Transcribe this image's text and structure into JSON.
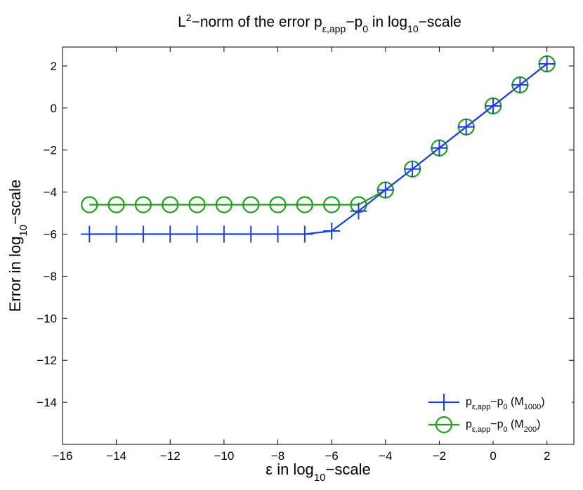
{
  "chart_data": {
    "type": "line",
    "title": {
      "main": "L",
      "sup": "2",
      "mid": "−norm of the error p",
      "sub1": "ε,app",
      "mid2": "−p",
      "sub2": "0",
      "mid3": " in log",
      "sub3": "10",
      "end": "−scale"
    },
    "xlabel": {
      "pre": "ε in log",
      "sub": "10",
      "post": "−scale"
    },
    "ylabel": {
      "pre": "Error in log",
      "sub": "10",
      "post": "−scale"
    },
    "xlim": [
      -16,
      3
    ],
    "ylim": [
      -16,
      2.9
    ],
    "xticks": [
      -16,
      -14,
      -12,
      -10,
      -8,
      -6,
      -4,
      -2,
      0,
      2
    ],
    "yticks": [
      -14,
      -12,
      -10,
      -8,
      -6,
      -4,
      -2,
      0,
      2
    ],
    "xtick_labels": [
      "−16",
      "−14",
      "−12",
      "−10",
      "−8",
      "−6",
      "−4",
      "−2",
      "0",
      "2"
    ],
    "ytick_labels": [
      "−14",
      "−12",
      "−10",
      "−8",
      "−6",
      "−4",
      "−2",
      "0",
      "2"
    ],
    "x": [
      -15,
      -14,
      -13,
      -12,
      -11,
      -10,
      -9,
      -8,
      -7,
      -6,
      -5,
      -4,
      -3,
      -2,
      -1,
      0,
      1,
      2
    ],
    "series": [
      {
        "label": {
          "a": "p",
          "a_sub": "ε,app",
          "b": "−p",
          "b_sub": "0",
          "c": " (M",
          "c_sub": "1000",
          "d": ")"
        },
        "marker": "plus",
        "color": "#1f3fe0",
        "values": [
          -6.0,
          -6.0,
          -6.0,
          -6.0,
          -6.0,
          -6.0,
          -6.0,
          -6.0,
          -6.0,
          -5.85,
          -4.9,
          -3.9,
          -2.9,
          -1.9,
          -0.9,
          0.1,
          1.1,
          2.1
        ]
      },
      {
        "label": {
          "a": "p",
          "a_sub": "ε,app",
          "b": "−p",
          "b_sub": "0",
          "c": " (M",
          "c_sub": "200",
          "d": ")"
        },
        "marker": "circle",
        "color": "#22a01c",
        "values": [
          -4.6,
          -4.6,
          -4.6,
          -4.6,
          -4.6,
          -4.6,
          -4.6,
          -4.6,
          -4.6,
          -4.6,
          -4.6,
          -3.9,
          -2.9,
          -1.9,
          -0.9,
          0.1,
          1.1,
          2.1
        ]
      }
    ],
    "grid": false,
    "legend": "bottom-right"
  }
}
